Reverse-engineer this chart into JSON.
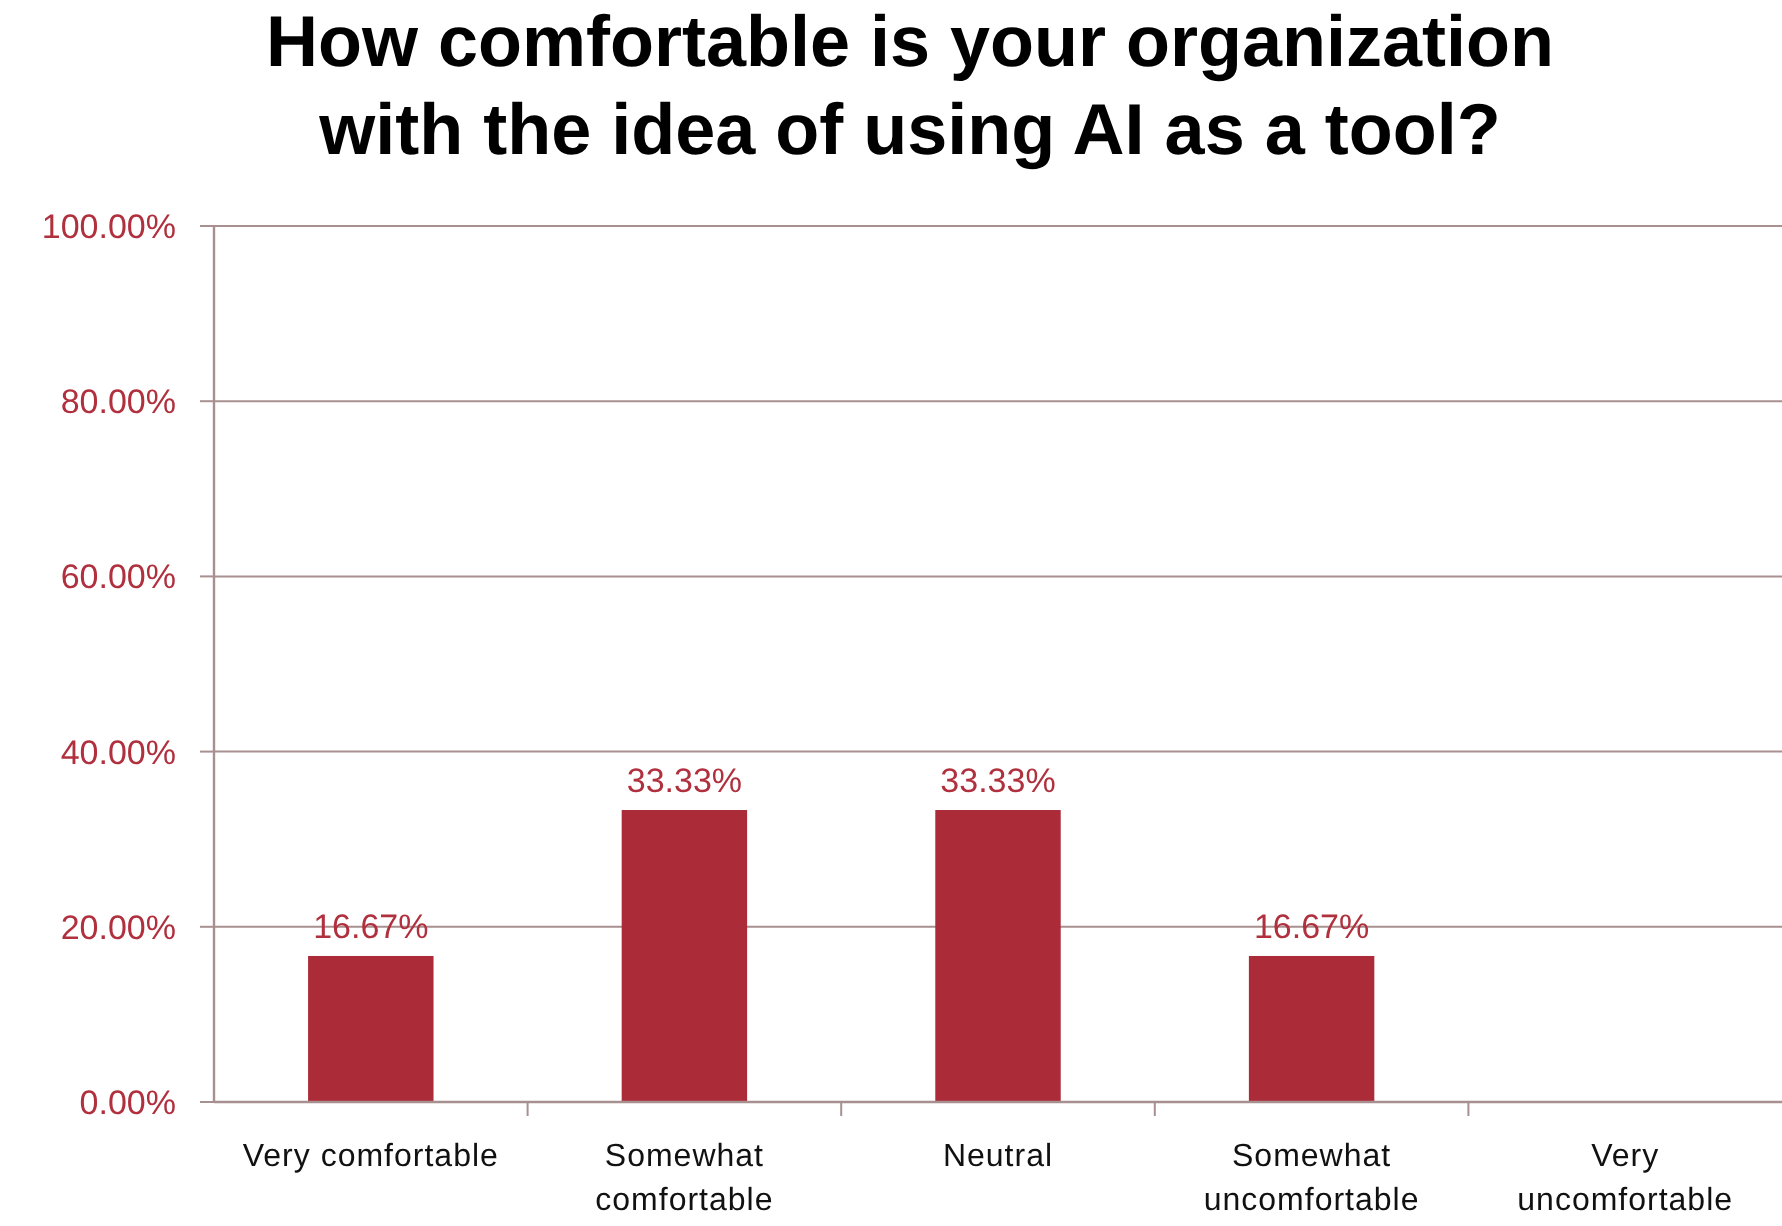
{
  "chart_data": {
    "type": "bar",
    "title": "How comfortable is your organization with the idea of using AI as a tool?",
    "categories": [
      "Very comfortable",
      "Somewhat comfortable",
      "Neutral",
      "Somewhat uncomfortable",
      "Very uncomfortable"
    ],
    "values": [
      16.67,
      33.33,
      33.33,
      16.67,
      0
    ],
    "color": "#ab2b38",
    "value_labels": [
      "16.67%",
      "33.33%",
      "33.33%",
      "16.67%",
      null
    ],
    "ylim": [
      0,
      100
    ],
    "yticks": [
      {
        "value": 0,
        "label": "0.00%"
      },
      {
        "value": 20,
        "label": "20.00%"
      },
      {
        "value": 40,
        "label": "40.00%"
      },
      {
        "value": 60,
        "label": "60.00%"
      },
      {
        "value": 80,
        "label": "80.00%"
      },
      {
        "value": 100,
        "label": "100.00%"
      }
    ],
    "grid": "y"
  }
}
